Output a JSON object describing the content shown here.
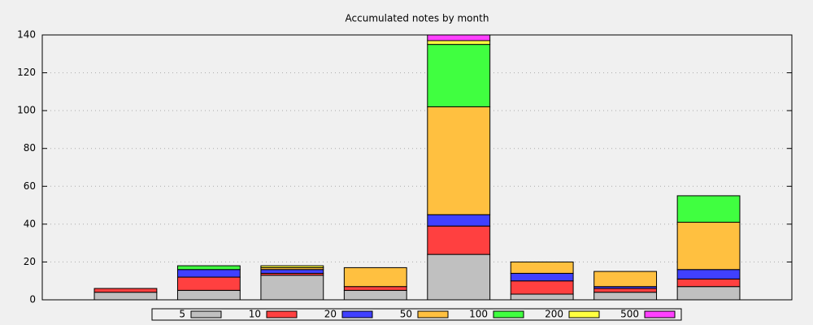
{
  "chart_data": {
    "type": "stacked-bar",
    "title": "Accumulated notes by month",
    "categories": [
      null,
      null,
      null,
      null,
      null,
      null,
      null,
      null
    ],
    "series": [
      {
        "name": "5",
        "color": "#c0c0c0",
        "values": [
          4,
          5,
          13,
          5,
          24,
          3,
          4,
          7
        ]
      },
      {
        "name": "10",
        "color": "#ff4040",
        "values": [
          2,
          7,
          1,
          2,
          15,
          7,
          2,
          4
        ]
      },
      {
        "name": "20",
        "color": "#4040ff",
        "values": [
          0,
          4,
          2,
          0,
          6,
          4,
          1,
          5
        ]
      },
      {
        "name": "50",
        "color": "#ffc040",
        "values": [
          0,
          0,
          1,
          10,
          57,
          6,
          8,
          25
        ]
      },
      {
        "name": "100",
        "color": "#40ff40",
        "values": [
          0,
          2,
          0,
          0,
          33,
          0,
          0,
          14
        ]
      },
      {
        "name": "200",
        "color": "#ffff40",
        "values": [
          0,
          0,
          1,
          0,
          2,
          0,
          0,
          0
        ]
      },
      {
        "name": "500",
        "color": "#ff40ff",
        "values": [
          0,
          0,
          0,
          0,
          3,
          0,
          0,
          0
        ]
      }
    ],
    "ylim": [
      0,
      140
    ],
    "yticks": [
      0,
      20,
      40,
      60,
      80,
      100,
      120,
      140
    ],
    "grid": true,
    "legend": "bottom"
  }
}
